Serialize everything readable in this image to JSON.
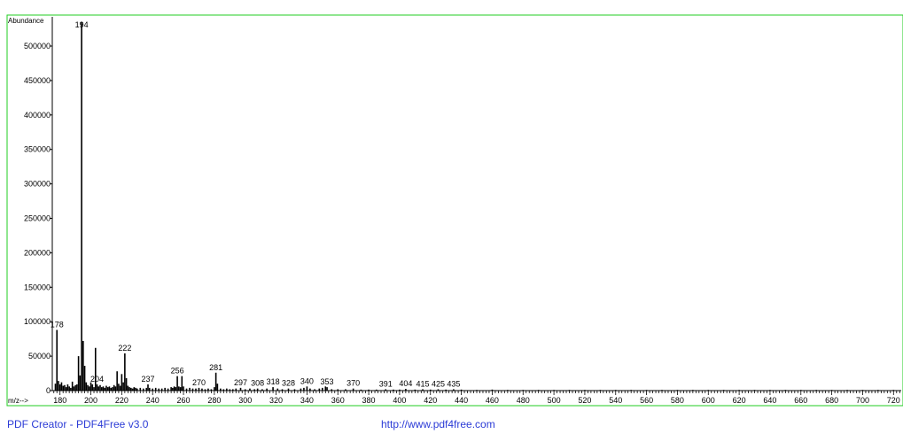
{
  "chart_data": {
    "type": "bar",
    "ylabel": "Abundance",
    "xlabel": "m/z-->",
    "xlim": [
      175,
      725
    ],
    "ylim": [
      0,
      545000
    ],
    "x_ticks": [
      180,
      200,
      220,
      240,
      260,
      280,
      300,
      320,
      340,
      360,
      380,
      400,
      420,
      440,
      460,
      480,
      500,
      520,
      540,
      560,
      580,
      600,
      620,
      640,
      660,
      680,
      700,
      720
    ],
    "y_ticks": [
      0,
      50000,
      100000,
      150000,
      200000,
      250000,
      300000,
      350000,
      400000,
      450000,
      500000
    ],
    "peak_labels": [
      "178",
      "194",
      "204",
      "222",
      "237",
      "256",
      "270",
      "281",
      "297",
      "308",
      "318",
      "328",
      "340",
      "353",
      "370",
      "391",
      "404",
      "415",
      "425",
      "435"
    ],
    "points": [
      {
        "x": 177,
        "y": 10000
      },
      {
        "x": 178,
        "y": 88000
      },
      {
        "x": 179,
        "y": 14000
      },
      {
        "x": 180,
        "y": 9000
      },
      {
        "x": 181,
        "y": 12000
      },
      {
        "x": 182,
        "y": 7000
      },
      {
        "x": 183,
        "y": 8000
      },
      {
        "x": 184,
        "y": 5000
      },
      {
        "x": 185,
        "y": 9000
      },
      {
        "x": 186,
        "y": 6000
      },
      {
        "x": 187,
        "y": 4000
      },
      {
        "x": 188,
        "y": 13000
      },
      {
        "x": 189,
        "y": 6000
      },
      {
        "x": 190,
        "y": 8000
      },
      {
        "x": 191,
        "y": 9000
      },
      {
        "x": 192,
        "y": 50000
      },
      {
        "x": 193,
        "y": 22000
      },
      {
        "x": 194,
        "y": 535000
      },
      {
        "x": 195,
        "y": 72000
      },
      {
        "x": 196,
        "y": 36000
      },
      {
        "x": 197,
        "y": 12000
      },
      {
        "x": 198,
        "y": 8000
      },
      {
        "x": 199,
        "y": 6000
      },
      {
        "x": 200,
        "y": 12000
      },
      {
        "x": 201,
        "y": 9000
      },
      {
        "x": 202,
        "y": 5000
      },
      {
        "x": 203,
        "y": 62000
      },
      {
        "x": 204,
        "y": 9000
      },
      {
        "x": 205,
        "y": 6000
      },
      {
        "x": 206,
        "y": 8000
      },
      {
        "x": 207,
        "y": 5000
      },
      {
        "x": 208,
        "y": 6000
      },
      {
        "x": 209,
        "y": 4000
      },
      {
        "x": 210,
        "y": 7000
      },
      {
        "x": 211,
        "y": 5000
      },
      {
        "x": 212,
        "y": 6000
      },
      {
        "x": 213,
        "y": 4000
      },
      {
        "x": 214,
        "y": 5000
      },
      {
        "x": 215,
        "y": 8000
      },
      {
        "x": 216,
        "y": 6000
      },
      {
        "x": 217,
        "y": 28000
      },
      {
        "x": 218,
        "y": 10000
      },
      {
        "x": 219,
        "y": 7000
      },
      {
        "x": 220,
        "y": 24000
      },
      {
        "x": 221,
        "y": 12000
      },
      {
        "x": 222,
        "y": 54000
      },
      {
        "x": 223,
        "y": 18000
      },
      {
        "x": 224,
        "y": 7000
      },
      {
        "x": 225,
        "y": 5000
      },
      {
        "x": 226,
        "y": 4000
      },
      {
        "x": 227,
        "y": 3000
      },
      {
        "x": 228,
        "y": 5000
      },
      {
        "x": 229,
        "y": 4000
      },
      {
        "x": 230,
        "y": 3000
      },
      {
        "x": 232,
        "y": 4000
      },
      {
        "x": 234,
        "y": 3000
      },
      {
        "x": 236,
        "y": 4000
      },
      {
        "x": 237,
        "y": 9000
      },
      {
        "x": 238,
        "y": 4000
      },
      {
        "x": 240,
        "y": 3000
      },
      {
        "x": 242,
        "y": 4000
      },
      {
        "x": 244,
        "y": 3000
      },
      {
        "x": 246,
        "y": 3000
      },
      {
        "x": 248,
        "y": 4000
      },
      {
        "x": 250,
        "y": 3000
      },
      {
        "x": 252,
        "y": 5000
      },
      {
        "x": 253,
        "y": 4000
      },
      {
        "x": 254,
        "y": 6000
      },
      {
        "x": 255,
        "y": 5000
      },
      {
        "x": 256,
        "y": 21000
      },
      {
        "x": 257,
        "y": 6000
      },
      {
        "x": 258,
        "y": 5000
      },
      {
        "x": 259,
        "y": 21000
      },
      {
        "x": 260,
        "y": 6000
      },
      {
        "x": 262,
        "y": 3000
      },
      {
        "x": 264,
        "y": 4000
      },
      {
        "x": 266,
        "y": 3000
      },
      {
        "x": 268,
        "y": 3000
      },
      {
        "x": 270,
        "y": 4000
      },
      {
        "x": 272,
        "y": 3000
      },
      {
        "x": 274,
        "y": 2000
      },
      {
        "x": 276,
        "y": 3000
      },
      {
        "x": 278,
        "y": 2000
      },
      {
        "x": 280,
        "y": 5000
      },
      {
        "x": 281,
        "y": 26000
      },
      {
        "x": 282,
        "y": 10000
      },
      {
        "x": 284,
        "y": 3000
      },
      {
        "x": 286,
        "y": 2000
      },
      {
        "x": 288,
        "y": 3000
      },
      {
        "x": 290,
        "y": 2000
      },
      {
        "x": 292,
        "y": 2000
      },
      {
        "x": 294,
        "y": 3000
      },
      {
        "x": 297,
        "y": 4000
      },
      {
        "x": 300,
        "y": 2000
      },
      {
        "x": 303,
        "y": 3000
      },
      {
        "x": 306,
        "y": 2000
      },
      {
        "x": 308,
        "y": 3000
      },
      {
        "x": 311,
        "y": 2000
      },
      {
        "x": 314,
        "y": 3000
      },
      {
        "x": 318,
        "y": 5000
      },
      {
        "x": 321,
        "y": 3000
      },
      {
        "x": 324,
        "y": 2000
      },
      {
        "x": 328,
        "y": 3000
      },
      {
        "x": 332,
        "y": 2000
      },
      {
        "x": 336,
        "y": 3000
      },
      {
        "x": 338,
        "y": 4000
      },
      {
        "x": 340,
        "y": 6000
      },
      {
        "x": 342,
        "y": 3000
      },
      {
        "x": 345,
        "y": 2000
      },
      {
        "x": 348,
        "y": 3000
      },
      {
        "x": 350,
        "y": 4000
      },
      {
        "x": 352,
        "y": 6000
      },
      {
        "x": 353,
        "y": 5000
      },
      {
        "x": 356,
        "y": 2000
      },
      {
        "x": 360,
        "y": 2000
      },
      {
        "x": 365,
        "y": 2000
      },
      {
        "x": 370,
        "y": 3000
      },
      {
        "x": 375,
        "y": 1500
      },
      {
        "x": 380,
        "y": 1500
      },
      {
        "x": 385,
        "y": 1500
      },
      {
        "x": 391,
        "y": 2000
      },
      {
        "x": 396,
        "y": 1500
      },
      {
        "x": 400,
        "y": 1500
      },
      {
        "x": 404,
        "y": 2500
      },
      {
        "x": 410,
        "y": 1500
      },
      {
        "x": 415,
        "y": 2000
      },
      {
        "x": 420,
        "y": 1500
      },
      {
        "x": 425,
        "y": 2000
      },
      {
        "x": 430,
        "y": 1500
      },
      {
        "x": 435,
        "y": 2000
      },
      {
        "x": 440,
        "y": 1500
      },
      {
        "x": 450,
        "y": 1000
      },
      {
        "x": 460,
        "y": 1500
      },
      {
        "x": 470,
        "y": 1000
      },
      {
        "x": 480,
        "y": 1000
      },
      {
        "x": 490,
        "y": 1000
      },
      {
        "x": 500,
        "y": 1000
      },
      {
        "x": 510,
        "y": 1000
      },
      {
        "x": 520,
        "y": 1000
      },
      {
        "x": 530,
        "y": 1000
      },
      {
        "x": 540,
        "y": 1000
      },
      {
        "x": 550,
        "y": 1000
      },
      {
        "x": 560,
        "y": 1000
      },
      {
        "x": 570,
        "y": 1000
      },
      {
        "x": 580,
        "y": 1000
      },
      {
        "x": 590,
        "y": 1000
      },
      {
        "x": 600,
        "y": 1000
      },
      {
        "x": 610,
        "y": 1000
      },
      {
        "x": 620,
        "y": 1000
      },
      {
        "x": 630,
        "y": 1000
      },
      {
        "x": 640,
        "y": 1000
      },
      {
        "x": 650,
        "y": 1000
      },
      {
        "x": 660,
        "y": 1000
      },
      {
        "x": 670,
        "y": 1000
      },
      {
        "x": 680,
        "y": 1000
      },
      {
        "x": 690,
        "y": 1000
      },
      {
        "x": 700,
        "y": 1000
      },
      {
        "x": 710,
        "y": 1000
      },
      {
        "x": 720,
        "y": 1000
      }
    ],
    "frame_color": "#22cc22",
    "bar_color": "#000000",
    "legend": "none",
    "grid": false
  },
  "footer": {
    "left": "PDF Creator - PDF4Free v3.0",
    "right": "http://www.pdf4free.com",
    "color": "#2b3bd6"
  }
}
